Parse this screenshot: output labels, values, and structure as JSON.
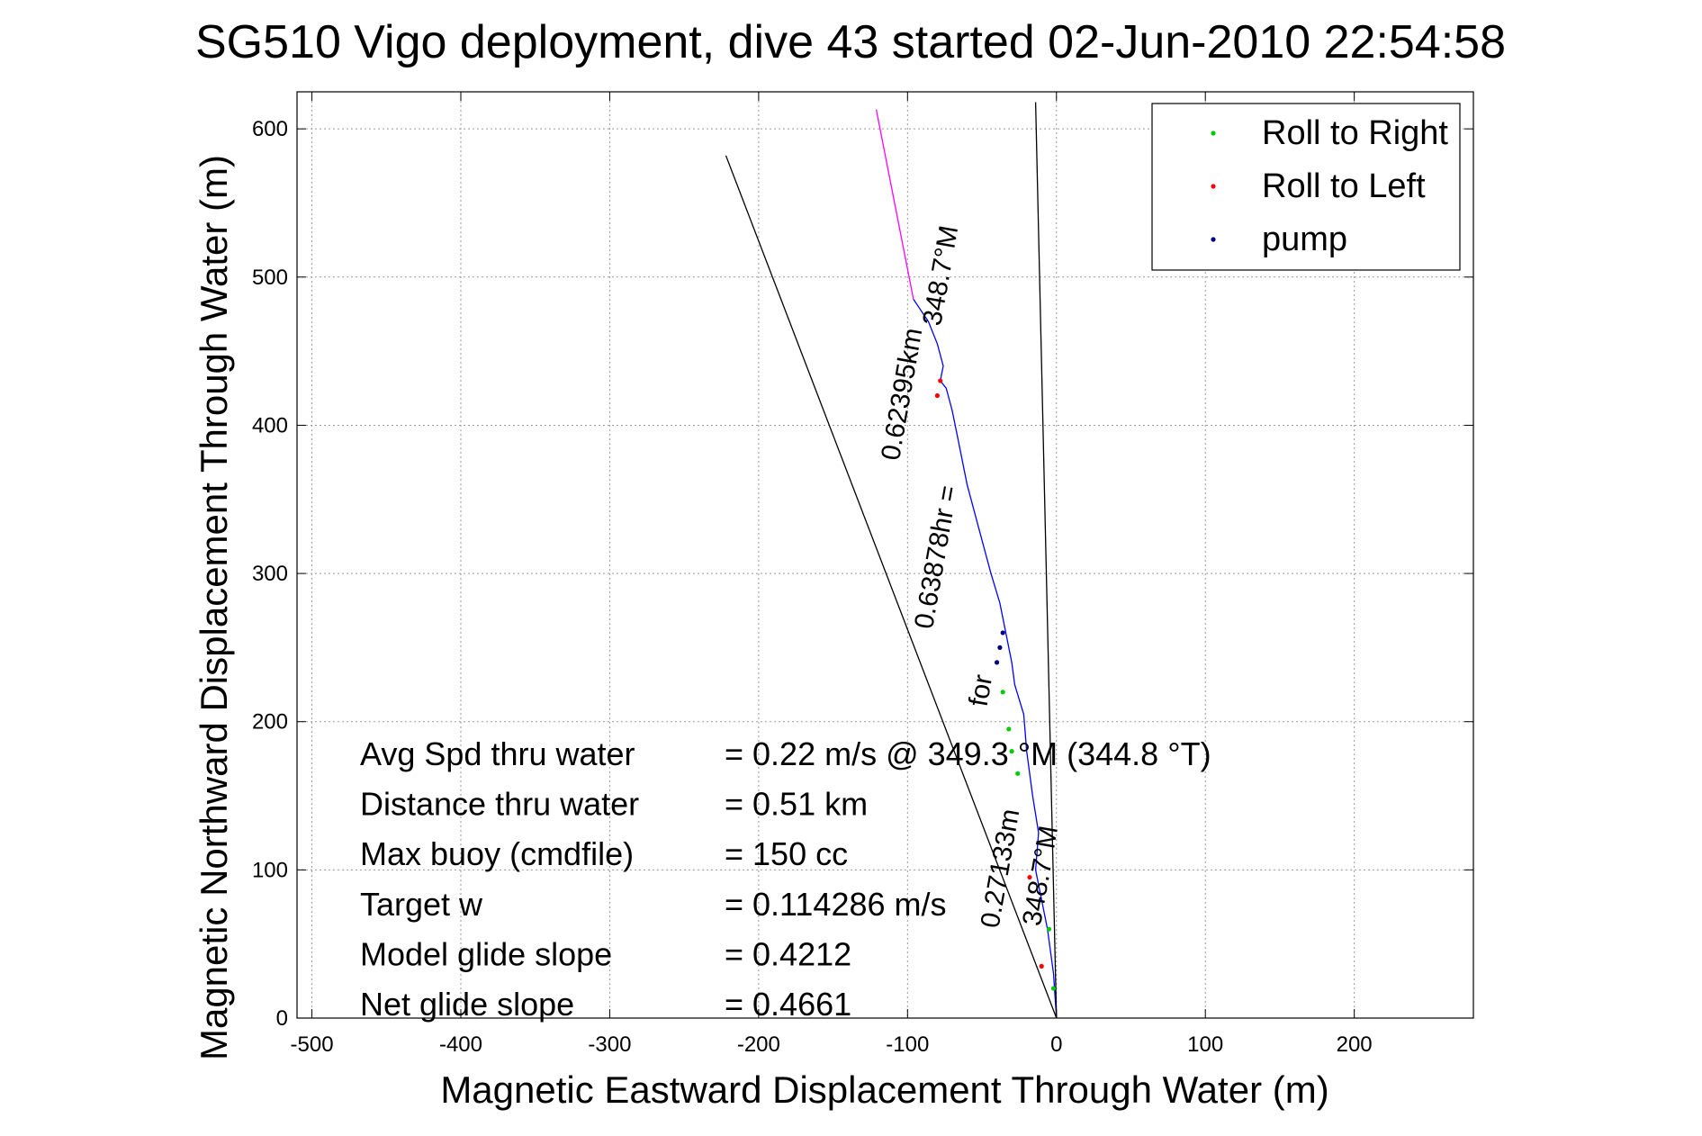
{
  "chart_data": {
    "type": "line",
    "title": "SG510 Vigo deployment, dive 43 started 02-Jun-2010 22:54:58",
    "xlabel": "Magnetic Eastward Displacement Through Water (m)",
    "ylabel": "Magnetic Northward Displacement Through Water (m)",
    "xlim": [
      -510,
      280
    ],
    "ylim": [
      0,
      625
    ],
    "xticks": [
      -500,
      -400,
      -300,
      -200,
      -100,
      0,
      100,
      200
    ],
    "yticks": [
      0,
      100,
      200,
      300,
      400,
      500,
      600
    ],
    "grid": true,
    "legend_position": "top-right",
    "legend": [
      {
        "name": "Roll to Right",
        "color": "#00cc00"
      },
      {
        "name": "Roll to Left",
        "color": "#ff0000"
      },
      {
        "name": "pump",
        "color": "#000080"
      }
    ],
    "series": [
      {
        "name": "track",
        "color": "#0000ff",
        "x": [
          0,
          -2,
          -6,
          -10,
          -14,
          -12,
          -16,
          -20,
          -22,
          -28,
          -30,
          -34,
          -38,
          -44,
          -52,
          -60,
          -66,
          -70,
          -74,
          -78,
          -76,
          -80,
          -86,
          -96
        ],
        "y": [
          0,
          30,
          60,
          80,
          100,
          125,
          150,
          180,
          205,
          225,
          240,
          260,
          280,
          300,
          330,
          360,
          390,
          410,
          425,
          430,
          440,
          455,
          470,
          485
        ]
      },
      {
        "name": "heading projection",
        "color": "#ff00ff",
        "x": [
          -96,
          -121
        ],
        "y": [
          485,
          613
        ]
      },
      {
        "name": "envelope line 1",
        "color": "#000000",
        "x": [
          0,
          -222
        ],
        "y": [
          0,
          582
        ]
      },
      {
        "name": "envelope line 2",
        "color": "#000000",
        "x": [
          0,
          -14
        ],
        "y": [
          0,
          618
        ]
      }
    ],
    "markers": [
      {
        "type": "roll-right",
        "color": "#00cc00",
        "x": [
          -2,
          -5,
          -26,
          -30,
          -32,
          -36
        ],
        "y": [
          20,
          60,
          165,
          180,
          195,
          220
        ]
      },
      {
        "type": "roll-left",
        "color": "#ff0000",
        "x": [
          -10,
          -18,
          -80,
          -78
        ],
        "y": [
          35,
          95,
          420,
          430
        ]
      },
      {
        "type": "pump",
        "color": "#000080",
        "x": [
          -40,
          -38,
          -36
        ],
        "y": [
          240,
          250,
          260
        ]
      }
    ],
    "annotations": [
      {
        "text": "0.62395km",
        "x": -98,
        "y": 420,
        "rotation": -80
      },
      {
        "text": "348.7°M",
        "x": -72,
        "y": 500,
        "rotation": -80
      },
      {
        "text": "0.63878hr =",
        "x": -75,
        "y": 310,
        "rotation": -80
      },
      {
        "text": "for",
        "x": -45,
        "y": 220,
        "rotation": -80
      },
      {
        "text": "0.27133m",
        "x": -32,
        "y": 100,
        "rotation": -80
      },
      {
        "text": "348.7°M",
        "x": -5,
        "y": 95,
        "rotation": -80
      }
    ],
    "stats": [
      {
        "label": "Avg Spd thru water",
        "value": "=  0.22 m/s @ 349.3 °M (344.8 °T)"
      },
      {
        "label": "Distance thru water",
        "value": "=  0.51 km"
      },
      {
        "label": "Max buoy (cmdfile)",
        "value": "= 150 cc"
      },
      {
        "label": "Target w",
        "value": "= 0.114286 m/s"
      },
      {
        "label": "Model glide slope",
        "value": "= 0.4212"
      },
      {
        "label": "Net glide slope",
        "value": "= 0.4661"
      }
    ]
  }
}
